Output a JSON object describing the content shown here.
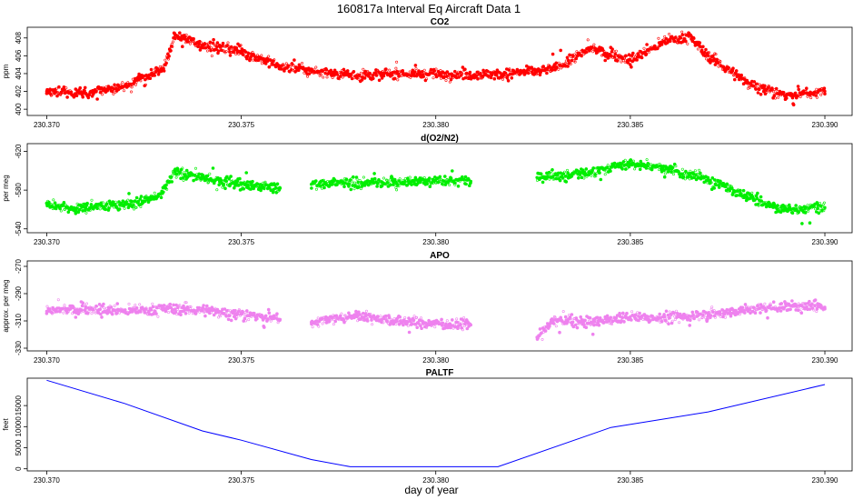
{
  "title": "160817a   Interval Eq Aircraft Data 1",
  "xlabel": "day of year",
  "chart_data": [
    {
      "type": "scatter",
      "title": "CO2",
      "ylabel": "ppm",
      "color": "#ff0000",
      "xlim": [
        230.3695,
        230.3907
      ],
      "ylim": [
        399.3,
        409.2
      ],
      "xticks": [
        "230.370",
        "230.375",
        "230.380",
        "230.385",
        "230.390"
      ],
      "yticks": [
        "400",
        "402",
        "404",
        "406",
        "408"
      ],
      "x": [
        230.37,
        230.371,
        230.372,
        230.373,
        230.3733,
        230.374,
        230.375,
        230.376,
        230.377,
        230.378,
        230.379,
        230.38,
        230.381,
        230.382,
        230.383,
        230.384,
        230.385,
        230.386,
        230.3865,
        230.387,
        230.388,
        230.389,
        230.39
      ],
      "y": [
        402.0,
        401.8,
        402.6,
        404.5,
        408.3,
        407.2,
        406.5,
        404.8,
        404.2,
        403.8,
        404.0,
        403.9,
        403.9,
        404.0,
        404.5,
        406.8,
        405.5,
        407.8,
        408.2,
        406.0,
        403.0,
        401.5,
        402.0
      ]
    },
    {
      "type": "scatter",
      "title": "d(O2/N2)",
      "ylabel": "per meg",
      "color": "#00ee00",
      "xlim": [
        230.3695,
        230.3907
      ],
      "ylim": [
        -628,
        -536
      ],
      "yreversed": true,
      "xticks": [
        "230.370",
        "230.375",
        "230.380",
        "230.385",
        "230.390"
      ],
      "yticks": [
        "-540",
        "-580",
        "-620"
      ],
      "gaps": [
        [
          230.376,
          230.3768
        ],
        [
          230.3809,
          230.3826
        ]
      ],
      "x": [
        230.37,
        230.3707,
        230.371,
        230.372,
        230.3725,
        230.373,
        230.3733,
        230.374,
        230.375,
        230.376,
        230.3768,
        230.378,
        230.379,
        230.38,
        230.3809,
        230.3826,
        230.384,
        230.385,
        230.386,
        230.387,
        230.388,
        230.389,
        230.39
      ],
      "y": [
        -566,
        -560,
        -562,
        -565,
        -568,
        -578,
        -599,
        -593,
        -586,
        -582,
        -586,
        -588,
        -587,
        -590,
        -589,
        -593,
        -598,
        -607,
        -602,
        -590,
        -573,
        -560,
        -562
      ]
    },
    {
      "type": "scatter",
      "title": "APO",
      "ylabel": "approx. per meg",
      "color": "#ee82ee",
      "xlim": [
        230.3695,
        230.3907
      ],
      "ylim": [
        -332,
        -266
      ],
      "xticks": [
        "230.370",
        "230.375",
        "230.380",
        "230.385",
        "230.390"
      ],
      "yticks": [
        "-270",
        "-290",
        "-310",
        "-330"
      ],
      "gaps": [
        [
          230.376,
          230.3768
        ],
        [
          230.3809,
          230.3826
        ]
      ],
      "x": [
        230.37,
        230.371,
        230.372,
        230.373,
        230.374,
        230.375,
        230.376,
        230.3768,
        230.378,
        230.379,
        230.38,
        230.3809,
        230.3826,
        230.383,
        230.384,
        230.385,
        230.386,
        230.387,
        230.388,
        230.389,
        230.39
      ],
      "y": [
        -303,
        -301,
        -303,
        -301,
        -302,
        -305,
        -309,
        -311,
        -306,
        -310,
        -312,
        -313,
        -322,
        -310,
        -311,
        -307,
        -308,
        -305,
        -302,
        -299,
        -300
      ]
    },
    {
      "type": "line",
      "title": "PALTF",
      "ylabel": "feet",
      "color": "#0000ff",
      "xlim": [
        230.3695,
        230.3907
      ],
      "ylim": [
        -500,
        21500
      ],
      "xticks": [
        "230.370",
        "230.375",
        "230.380",
        "230.385",
        "230.390"
      ],
      "yticks": [
        "0",
        "5000",
        "10000",
        "15000"
      ],
      "x": [
        230.37,
        230.372,
        230.374,
        230.375,
        230.3768,
        230.3778,
        230.38,
        230.3816,
        230.3845,
        230.387,
        230.39
      ],
      "y": [
        21000,
        15500,
        9000,
        6800,
        2200,
        500,
        500,
        500,
        9800,
        13500,
        20000
      ]
    }
  ]
}
